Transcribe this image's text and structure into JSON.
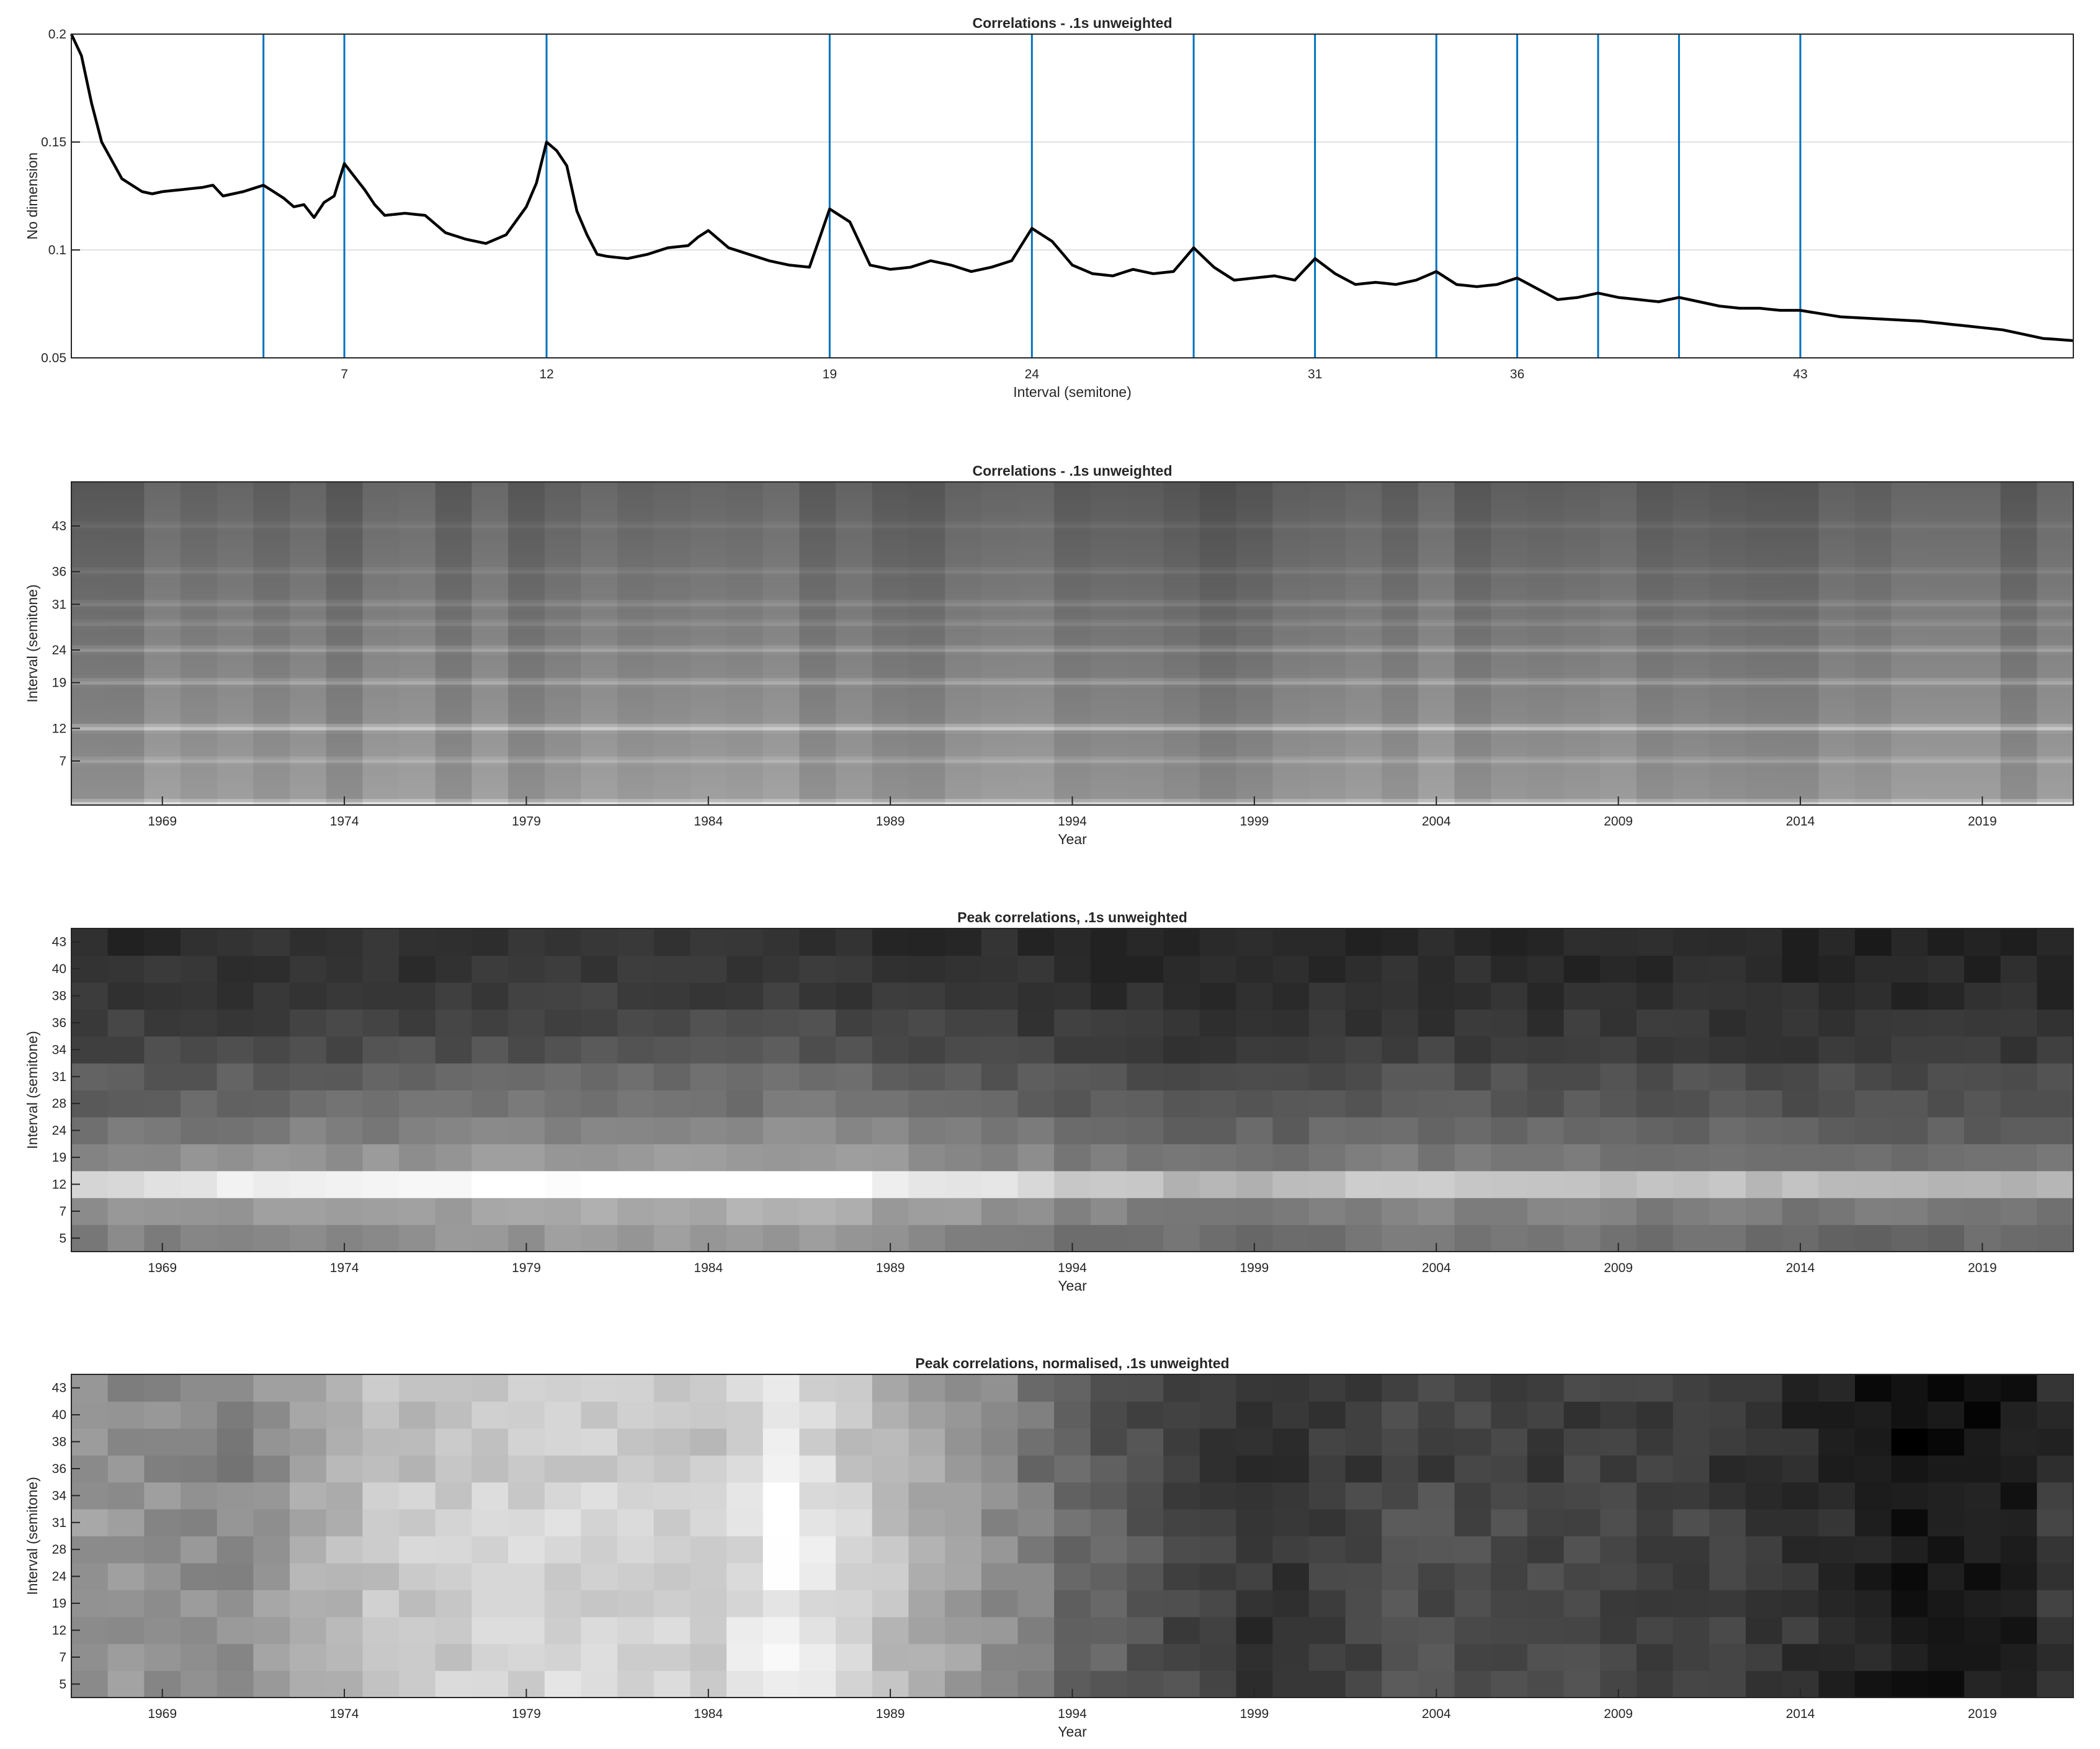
{
  "colors": {
    "curve": "#000000",
    "markers": "#0072BD",
    "grid": "#e1e1e1",
    "axis": "#262626"
  },
  "chart_data": [
    {
      "type": "line",
      "title": "Correlations - .1s unweighted",
      "xlabel": "Interval (semitone)",
      "ylabel": "No dimension",
      "xlim": [
        0.25,
        49.75
      ],
      "ylim": [
        0.05,
        0.2
      ],
      "yticks": [
        0.05,
        0.1,
        0.15,
        0.2
      ],
      "ytick_labels": [
        "0.05",
        "0.1",
        "0.15",
        "0.2"
      ],
      "xticks": [
        7,
        12,
        19,
        24,
        31,
        36,
        43
      ],
      "ytick_grid": true,
      "vertical_markers": [
        5,
        7,
        12,
        19,
        24,
        28,
        31,
        34,
        36,
        38,
        40,
        43
      ],
      "series": [
        {
          "key_points": [
            [
              0.25,
              0.2
            ],
            [
              0.5,
              0.19
            ],
            [
              0.75,
              0.168
            ],
            [
              1,
              0.15
            ],
            [
              1.5,
              0.133
            ],
            [
              2,
              0.127
            ],
            [
              2.25,
              0.126
            ],
            [
              2.5,
              0.127
            ],
            [
              3,
              0.128
            ],
            [
              3.5,
              0.129
            ],
            [
              3.75,
              0.13
            ],
            [
              4,
              0.125
            ],
            [
              4.5,
              0.127
            ],
            [
              5,
              0.13
            ],
            [
              5.5,
              0.124
            ],
            [
              5.75,
              0.12
            ],
            [
              6,
              0.121
            ],
            [
              6.25,
              0.115
            ],
            [
              6.5,
              0.122
            ],
            [
              6.75,
              0.125
            ],
            [
              7,
              0.14
            ],
            [
              7.5,
              0.128
            ],
            [
              7.75,
              0.121
            ],
            [
              8,
              0.116
            ],
            [
              8.5,
              0.117
            ],
            [
              9,
              0.116
            ],
            [
              9.5,
              0.108
            ],
            [
              10,
              0.105
            ],
            [
              10.5,
              0.103
            ],
            [
              11,
              0.107
            ],
            [
              11.5,
              0.12
            ],
            [
              11.75,
              0.131
            ],
            [
              12,
              0.15
            ],
            [
              12.25,
              0.146
            ],
            [
              12.5,
              0.139
            ],
            [
              12.75,
              0.118
            ],
            [
              13,
              0.107
            ],
            [
              13.25,
              0.098
            ],
            [
              13.5,
              0.097
            ],
            [
              14,
              0.096
            ],
            [
              14.5,
              0.098
            ],
            [
              15,
              0.101
            ],
            [
              15.5,
              0.102
            ],
            [
              15.75,
              0.106
            ],
            [
              16,
              0.109
            ],
            [
              16.5,
              0.101
            ],
            [
              17,
              0.098
            ],
            [
              17.5,
              0.095
            ],
            [
              18,
              0.093
            ],
            [
              18.5,
              0.092
            ],
            [
              19,
              0.119
            ],
            [
              19.5,
              0.113
            ],
            [
              19.75,
              0.103
            ],
            [
              20,
              0.093
            ],
            [
              20.5,
              0.091
            ],
            [
              21,
              0.092
            ],
            [
              21.5,
              0.095
            ],
            [
              22,
              0.093
            ],
            [
              22.5,
              0.09
            ],
            [
              23,
              0.092
            ],
            [
              23.5,
              0.095
            ],
            [
              24,
              0.11
            ],
            [
              24.5,
              0.104
            ],
            [
              25,
              0.093
            ],
            [
              25.5,
              0.089
            ],
            [
              26,
              0.088
            ],
            [
              26.5,
              0.091
            ],
            [
              27,
              0.089
            ],
            [
              27.5,
              0.09
            ],
            [
              28,
              0.101
            ],
            [
              28.5,
              0.092
            ],
            [
              29,
              0.086
            ],
            [
              29.5,
              0.087
            ],
            [
              30,
              0.088
            ],
            [
              30.5,
              0.086
            ],
            [
              31,
              0.096
            ],
            [
              31.5,
              0.089
            ],
            [
              32,
              0.084
            ],
            [
              32.5,
              0.085
            ],
            [
              33,
              0.084
            ],
            [
              33.5,
              0.086
            ],
            [
              34,
              0.09
            ],
            [
              34.5,
              0.084
            ],
            [
              35,
              0.083
            ],
            [
              35.5,
              0.084
            ],
            [
              36,
              0.087
            ],
            [
              36.5,
              0.082
            ],
            [
              37,
              0.077
            ],
            [
              37.5,
              0.078
            ],
            [
              38,
              0.08
            ],
            [
              38.5,
              0.078
            ],
            [
              39,
              0.077
            ],
            [
              39.5,
              0.076
            ],
            [
              40,
              0.078
            ],
            [
              40.5,
              0.076
            ],
            [
              41,
              0.074
            ],
            [
              41.5,
              0.073
            ],
            [
              42,
              0.073
            ],
            [
              42.5,
              0.072
            ],
            [
              43,
              0.072
            ],
            [
              44,
              0.069
            ],
            [
              45,
              0.068
            ],
            [
              46,
              0.067
            ],
            [
              47,
              0.065
            ],
            [
              48,
              0.063
            ],
            [
              48.5,
              0.061
            ],
            [
              49,
              0.059
            ],
            [
              49.75,
              0.058
            ]
          ]
        }
      ]
    },
    {
      "type": "heatmap",
      "title": "Correlations - .1s unweighted",
      "xlabel": "Year",
      "ylabel": "Interval (semitone)",
      "colormap": "gray",
      "x_range": [
        1967,
        2021
      ],
      "xticks": [
        1969,
        1974,
        1979,
        1984,
        1989,
        1994,
        1999,
        2004,
        2009,
        2014,
        2019
      ],
      "y_range": [
        0.25,
        49.75
      ],
      "yticks": [
        7,
        12,
        19,
        24,
        31,
        36,
        43
      ],
      "peaks": [
        [
          7,
          0.45
        ],
        [
          12,
          1.0
        ],
        [
          19,
          0.6
        ],
        [
          24,
          0.55
        ],
        [
          28,
          0.3
        ],
        [
          31,
          0.35
        ],
        [
          36,
          0.25
        ],
        [
          43,
          0.2
        ]
      ]
    },
    {
      "type": "heatmap",
      "title": "Peak correlations, .1s unweighted",
      "xlabel": "Year",
      "ylabel": "Interval (semitone)",
      "colormap": "gray",
      "x_range": [
        1967,
        2021
      ],
      "xticks": [
        1969,
        1974,
        1979,
        1984,
        1989,
        1994,
        1999,
        2004,
        2009,
        2014,
        2019
      ],
      "y_categories": [
        "5",
        "7",
        "12",
        "19",
        "24",
        "28",
        "31",
        "34",
        "36",
        "38",
        "40",
        "43"
      ],
      "row_levels": [
        0.55,
        0.62,
        0.95,
        0.58,
        0.5,
        0.42,
        0.38,
        0.3,
        0.26,
        0.22,
        0.2,
        0.18
      ],
      "period_trend": [
        [
          1967,
          0.72
        ],
        [
          1975,
          0.85
        ],
        [
          1980,
          0.95
        ],
        [
          1987,
          0.98
        ],
        [
          1990,
          0.82
        ],
        [
          1994,
          0.62
        ],
        [
          1998,
          0.45
        ],
        [
          2002,
          0.58
        ],
        [
          2010,
          0.55
        ],
        [
          2016,
          0.45
        ],
        [
          2021,
          0.48
        ]
      ]
    },
    {
      "type": "heatmap",
      "title": "Peak correlations, normalised, .1s unweighted",
      "xlabel": "Year",
      "ylabel": "Interval (semitone)",
      "colormap": "gray",
      "x_range": [
        1967,
        2021
      ],
      "xticks": [
        1969,
        1974,
        1979,
        1984,
        1989,
        1994,
        1999,
        2004,
        2009,
        2014,
        2019
      ],
      "y_categories": [
        "5",
        "7",
        "12",
        "19",
        "24",
        "28",
        "31",
        "34",
        "36",
        "38",
        "40",
        "43"
      ],
      "period_trend": [
        [
          1967,
          0.6
        ],
        [
          1971,
          0.55
        ],
        [
          1975,
          0.78
        ],
        [
          1980,
          0.84
        ],
        [
          1984,
          0.8
        ],
        [
          1986,
          0.95
        ],
        [
          1988,
          0.82
        ],
        [
          1991,
          0.62
        ],
        [
          1994,
          0.42
        ],
        [
          1997,
          0.28
        ],
        [
          1999,
          0.2
        ],
        [
          2003,
          0.3
        ],
        [
          2010,
          0.27
        ],
        [
          2014,
          0.2
        ],
        [
          2017,
          0.08
        ],
        [
          2020,
          0.12
        ],
        [
          2021,
          0.22
        ]
      ]
    }
  ]
}
